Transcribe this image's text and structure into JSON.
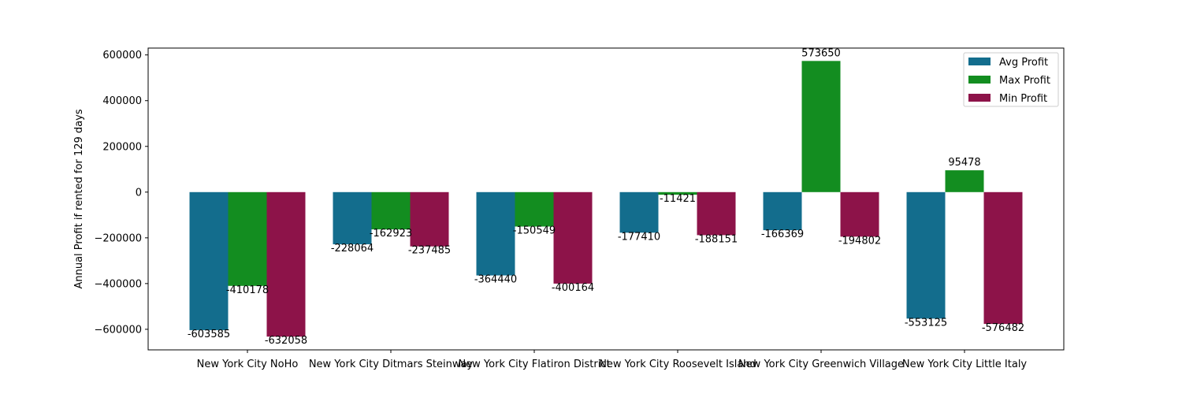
{
  "chart_data": {
    "type": "bar",
    "title": "",
    "xlabel": "",
    "ylabel": "Annual Profit if rented for 129 days",
    "categories": [
      "New York City NoHo",
      "New York City Ditmars Steinway",
      "New York City Flatiron District",
      "New York City Roosevelt Island",
      "New York City Greenwich Village",
      "New York City Little Italy"
    ],
    "series": [
      {
        "name": "Avg Profit",
        "color": "#136d8d",
        "values": [
          -603585,
          -228064,
          -364440,
          -177410,
          -166369,
          -553125
        ]
      },
      {
        "name": "Max Profit",
        "color": "#138d20",
        "values": [
          -410178,
          -162923,
          -150549,
          -11421,
          573650,
          95478
        ]
      },
      {
        "name": "Min Profit",
        "color": "#8d1349",
        "values": [
          -632058,
          -237485,
          -400164,
          -188151,
          -194802,
          -576482
        ]
      }
    ],
    "ylim": [
      -690000,
      630000
    ],
    "yticks": [
      -600000,
      -400000,
      -200000,
      0,
      200000,
      400000,
      600000
    ],
    "grid": false,
    "legend_position": "top-right"
  }
}
